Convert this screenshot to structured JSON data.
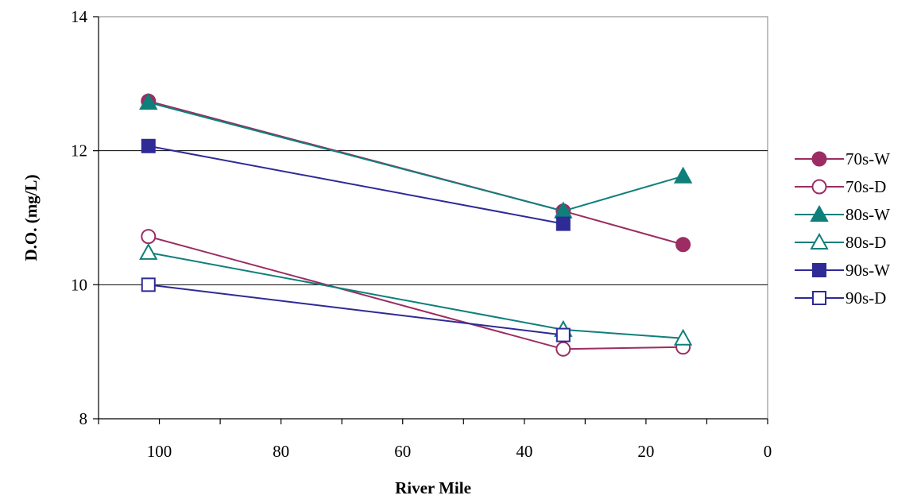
{
  "chart_data": {
    "type": "line",
    "title": "",
    "xlabel": "River Mile",
    "ylabel": "D.O. (mg/L)",
    "xlim": [
      110,
      0
    ],
    "ylim": [
      8,
      14
    ],
    "x_reversed": true,
    "xticks": [
      "100",
      "80",
      "60",
      "40",
      "20",
      "0"
    ],
    "yticks": [
      "8",
      "10",
      "12",
      "14"
    ],
    "grid": "horizontal",
    "legend": "right",
    "series": [
      {
        "name": "70s-W",
        "color": "#9b2d62",
        "marker": "circle",
        "filled": true,
        "points": [
          {
            "x": 101.8,
            "y": 12.74
          },
          {
            "x": 33.6,
            "y": 11.1
          },
          {
            "x": 13.9,
            "y": 10.6
          }
        ]
      },
      {
        "name": "70s-D",
        "color": "#9b2d62",
        "marker": "circle",
        "filled": false,
        "points": [
          {
            "x": 101.8,
            "y": 10.72
          },
          {
            "x": 33.6,
            "y": 9.04
          },
          {
            "x": 13.9,
            "y": 9.07
          }
        ]
      },
      {
        "name": "80s-W",
        "color": "#0f7f7b",
        "marker": "triangle",
        "filled": true,
        "points": [
          {
            "x": 101.8,
            "y": 12.72
          },
          {
            "x": 33.6,
            "y": 11.1
          },
          {
            "x": 13.9,
            "y": 11.62
          }
        ]
      },
      {
        "name": "80s-D",
        "color": "#0f7f7b",
        "marker": "triangle",
        "filled": false,
        "points": [
          {
            "x": 101.8,
            "y": 10.48
          },
          {
            "x": 33.6,
            "y": 9.33
          },
          {
            "x": 13.9,
            "y": 9.2
          }
        ]
      },
      {
        "name": "90s-W",
        "color": "#2e2a96",
        "marker": "square",
        "filled": true,
        "points": [
          {
            "x": 101.8,
            "y": 12.07
          },
          {
            "x": 33.6,
            "y": 10.91
          }
        ]
      },
      {
        "name": "90s-D",
        "color": "#2e2a96",
        "marker": "square",
        "filled": false,
        "points": [
          {
            "x": 101.8,
            "y": 10.0
          },
          {
            "x": 33.6,
            "y": 9.25
          }
        ]
      }
    ]
  }
}
